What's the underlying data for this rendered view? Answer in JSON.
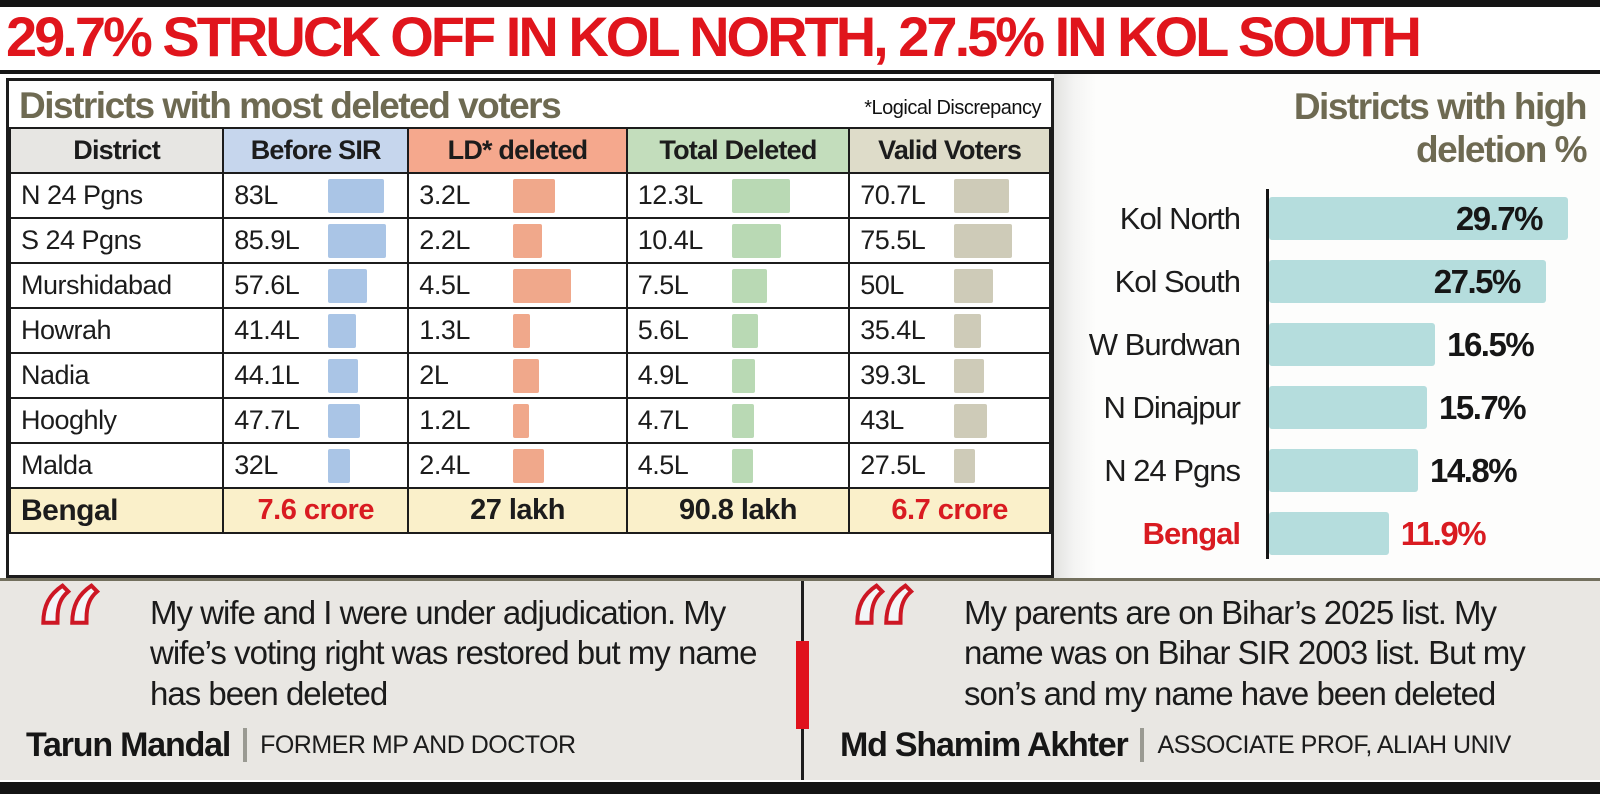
{
  "headline": "29.7% STRUCK OFF IN KOL NORTH, 27.5% IN KOL SOUTH",
  "colors": {
    "accent_red": "#d91b21",
    "title_olive": "#6e6a52",
    "chart_bar_teal": "#b5dddd",
    "table_header_bgs": [
      "#e7e6e3",
      "#c6d6ed",
      "#f5a88d",
      "#c3ddbc",
      "#dedcc9"
    ],
    "table_cell_bar_colors": [
      "#aac5e6",
      "#f0a88b",
      "#b9d9b4",
      "#cecbb8"
    ],
    "totals_row_bg": "#faf0ca",
    "quote_bg": "#e9e7e3"
  },
  "left_table": {
    "title": "Districts with most deleted voters",
    "note": "*Logical Discrepancy"
  },
  "chart_data": [
    {
      "type": "table",
      "title": "Districts with most deleted voters",
      "footnote": "*Logical Discrepancy",
      "unit": "L = lakh voters",
      "columns": [
        "District",
        "Before SIR",
        "LD* deleted",
        "Total Deleted",
        "Valid Voters"
      ],
      "rows": [
        {
          "district": "N 24 Pgns",
          "labels": [
            "83L",
            "3.2L",
            "12.3L",
            "70.7L"
          ],
          "values": [
            83,
            3.2,
            12.3,
            70.7
          ]
        },
        {
          "district": "S 24 Pgns",
          "labels": [
            "85.9L",
            "2.2L",
            "10.4L",
            "75.5L"
          ],
          "values": [
            85.9,
            2.2,
            10.4,
            75.5
          ]
        },
        {
          "district": "Murshidabad",
          "labels": [
            "57.6L",
            "4.5L",
            "7.5L",
            "50L"
          ],
          "values": [
            57.6,
            4.5,
            7.5,
            50
          ]
        },
        {
          "district": "Howrah",
          "labels": [
            "41.4L",
            "1.3L",
            "5.6L",
            "35.4L"
          ],
          "values": [
            41.4,
            1.3,
            5.6,
            35.4
          ]
        },
        {
          "district": "Nadia",
          "labels": [
            "44.1L",
            "2L",
            "4.9L",
            "39.3L"
          ],
          "values": [
            44.1,
            2,
            4.9,
            39.3
          ]
        },
        {
          "district": "Hooghly",
          "labels": [
            "47.7L",
            "1.2L",
            "4.7L",
            "43L"
          ],
          "values": [
            47.7,
            1.2,
            4.7,
            43
          ]
        },
        {
          "district": "Malda",
          "labels": [
            "32L",
            "2.4L",
            "4.5L",
            "27.5L"
          ],
          "values": [
            32,
            2.4,
            4.5,
            27.5
          ]
        }
      ],
      "totals": {
        "label": "Bengal",
        "values": [
          "7.6 crore",
          "27 lakh",
          "90.8 lakh",
          "6.7 crore"
        ],
        "red_flags": [
          true,
          false,
          false,
          true
        ]
      }
    },
    {
      "type": "bar",
      "title": "Districts with high deletion %",
      "orientation": "horizontal",
      "categories": [
        "Kol North",
        "Kol South",
        "W Burdwan",
        "N Dinajpur",
        "N 24 Pgns",
        "Bengal"
      ],
      "values": [
        29.7,
        27.5,
        16.5,
        15.7,
        14.8,
        11.9
      ],
      "value_labels": [
        "29.7%",
        "27.5%",
        "16.5%",
        "15.7%",
        "14.8%",
        "11.9%"
      ],
      "xlim": [
        0,
        30
      ],
      "highlight_category": "Bengal",
      "grid": false,
      "legend": "none"
    }
  ],
  "quotes": [
    {
      "text": "My wife and I were under adjudication. My wife’s voting right was restored but my name has been deleted",
      "name": "Tarun Mandal",
      "role": "FORMER MP AND DOCTOR"
    },
    {
      "text": "My parents are on Bihar’s 2025 list. My name was on Bihar SIR 2003 list. But my son’s and my name have been deleted",
      "name": "Md Shamim Akhter",
      "role": "ASSOCIATE PROF, ALIAH UNIV"
    }
  ]
}
